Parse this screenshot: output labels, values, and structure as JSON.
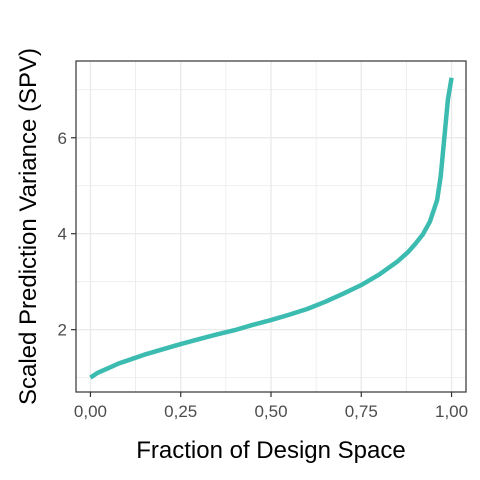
{
  "chart_data": {
    "type": "line",
    "title": "",
    "xlabel": "Fraction of Design Space",
    "ylabel": "Scaled Prediction Variance (SPV)",
    "xlim": [
      -0.04,
      1.04
    ],
    "ylim": [
      0.7,
      7.6
    ],
    "x_ticks": [
      0.0,
      0.25,
      0.5,
      0.75,
      1.0
    ],
    "x_tick_labels": [
      "0,00",
      "0,25",
      "0,50",
      "0,75",
      "1,00"
    ],
    "y_ticks": [
      2,
      4,
      6
    ],
    "y_tick_labels": [
      "2",
      "4",
      "6"
    ],
    "y_minor_ticks": [
      1,
      3,
      5,
      7
    ],
    "x_minor_ticks": [
      0.125,
      0.375,
      0.625,
      0.875
    ],
    "grid": true,
    "legend": "none",
    "line_color": "#3CBCB0",
    "panel_border_color": "#333333",
    "grid_color": "#ebebeb",
    "series": [
      {
        "values_x": [
          0.0,
          0.02,
          0.05,
          0.08,
          0.1,
          0.15,
          0.2,
          0.25,
          0.3,
          0.35,
          0.4,
          0.45,
          0.5,
          0.55,
          0.6,
          0.65,
          0.7,
          0.75,
          0.8,
          0.85,
          0.88,
          0.9,
          0.92,
          0.94,
          0.96,
          0.97,
          0.98,
          0.99,
          1.0
        ],
        "values_y": [
          1.0,
          1.1,
          1.2,
          1.3,
          1.35,
          1.48,
          1.59,
          1.7,
          1.8,
          1.9,
          1.99,
          2.1,
          2.2,
          2.31,
          2.43,
          2.58,
          2.75,
          2.93,
          3.15,
          3.42,
          3.62,
          3.79,
          3.98,
          4.25,
          4.7,
          5.2,
          6.0,
          6.8,
          7.25
        ]
      }
    ]
  }
}
